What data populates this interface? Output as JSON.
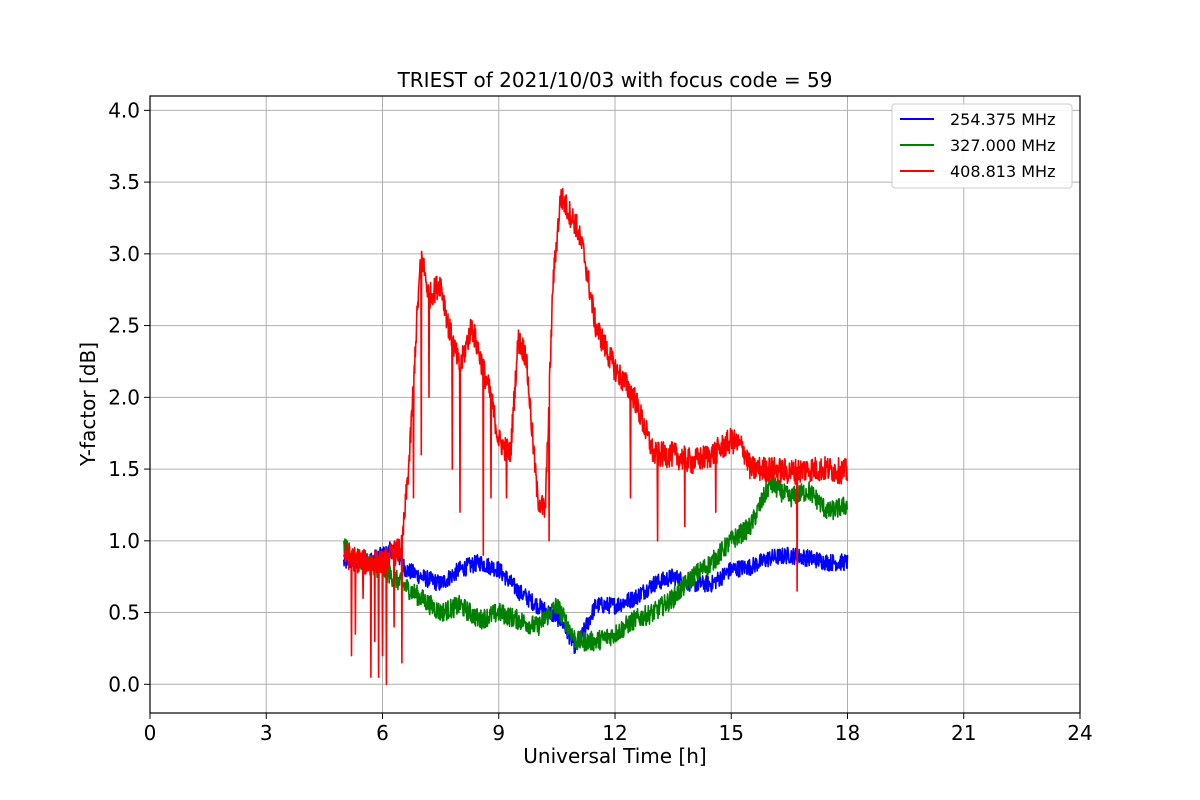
{
  "chart_data": {
    "type": "line",
    "title": "TRIEST of 2021/10/03 with focus code = 59",
    "xlabel": "Universal Time [h]",
    "ylabel": "Y-factor [dB]",
    "xlim": [
      0,
      24
    ],
    "ylim": [
      -0.2,
      4.1
    ],
    "xticks": [
      0,
      3,
      6,
      9,
      12,
      15,
      18,
      21,
      24
    ],
    "yticks": [
      0.0,
      0.5,
      1.0,
      1.5,
      2.0,
      2.5,
      3.0,
      3.5,
      4.0
    ],
    "xtick_labels": [
      "0",
      "3",
      "6",
      "9",
      "12",
      "15",
      "18",
      "21",
      "24"
    ],
    "ytick_labels": [
      "0.0",
      "0.5",
      "1.0",
      "1.5",
      "2.0",
      "2.5",
      "3.0",
      "3.5",
      "4.0"
    ],
    "grid": true,
    "legend_position": "top-right",
    "series": [
      {
        "name": "254.375 MHz",
        "color": "#0000ff",
        "noise": 0.06,
        "x": [
          5.0,
          5.5,
          6.0,
          6.3,
          6.6,
          7.0,
          7.5,
          8.0,
          8.5,
          9.0,
          9.5,
          10.0,
          10.3,
          10.6,
          11.0,
          11.5,
          12.0,
          12.5,
          13.0,
          13.5,
          14.0,
          14.5,
          15.0,
          15.5,
          16.0,
          16.5,
          17.0,
          17.5,
          18.0
        ],
        "y": [
          0.85,
          0.85,
          0.9,
          0.95,
          0.8,
          0.75,
          0.7,
          0.8,
          0.85,
          0.8,
          0.65,
          0.55,
          0.5,
          0.45,
          0.25,
          0.55,
          0.55,
          0.6,
          0.7,
          0.75,
          0.7,
          0.7,
          0.8,
          0.82,
          0.88,
          0.9,
          0.88,
          0.85,
          0.85
        ]
      },
      {
        "name": "327.000 MHz",
        "color": "#008000",
        "noise": 0.07,
        "x": [
          5.0,
          5.5,
          6.0,
          6.5,
          7.0,
          7.5,
          8.0,
          8.5,
          9.0,
          9.5,
          10.0,
          10.5,
          11.0,
          11.5,
          12.0,
          12.5,
          13.0,
          13.5,
          14.0,
          14.5,
          15.0,
          15.5,
          16.0,
          16.5,
          17.0,
          17.5,
          18.0
        ],
        "y": [
          0.95,
          0.85,
          0.8,
          0.7,
          0.6,
          0.5,
          0.55,
          0.45,
          0.5,
          0.45,
          0.4,
          0.55,
          0.3,
          0.3,
          0.35,
          0.45,
          0.5,
          0.6,
          0.75,
          0.85,
          1.0,
          1.1,
          1.4,
          1.3,
          1.35,
          1.2,
          1.25
        ]
      },
      {
        "name": "408.813 MHz",
        "color": "#ff0000",
        "noise": 0.09,
        "x": [
          5.0,
          5.5,
          6.0,
          6.5,
          6.7,
          6.9,
          7.0,
          7.2,
          7.5,
          7.7,
          8.0,
          8.3,
          8.5,
          8.8,
          9.0,
          9.3,
          9.5,
          9.7,
          10.0,
          10.2,
          10.4,
          10.6,
          10.8,
          11.0,
          11.2,
          11.5,
          12.0,
          12.5,
          13.0,
          13.5,
          14.0,
          14.5,
          15.0,
          15.3,
          15.5,
          16.0,
          16.5,
          17.0,
          17.5,
          18.0
        ],
        "y": [
          0.9,
          0.85,
          0.85,
          0.95,
          1.6,
          2.6,
          3.0,
          2.7,
          2.8,
          2.5,
          2.2,
          2.5,
          2.3,
          2.0,
          1.7,
          1.6,
          2.4,
          2.3,
          1.3,
          1.2,
          2.8,
          3.4,
          3.3,
          3.2,
          3.0,
          2.5,
          2.2,
          2.0,
          1.6,
          1.6,
          1.55,
          1.6,
          1.7,
          1.65,
          1.5,
          1.5,
          1.48,
          1.5,
          1.5,
          1.48
        ],
        "dips": [
          [
            5.2,
            0.2
          ],
          [
            5.3,
            0.35
          ],
          [
            5.5,
            0.6
          ],
          [
            5.7,
            0.05
          ],
          [
            5.8,
            0.3
          ],
          [
            5.9,
            0.05
          ],
          [
            6.0,
            0.2
          ],
          [
            6.1,
            0.0
          ],
          [
            6.3,
            0.4
          ],
          [
            6.5,
            0.15
          ],
          [
            6.8,
            1.3
          ],
          [
            7.0,
            1.6
          ],
          [
            7.2,
            2.0
          ],
          [
            7.8,
            1.5
          ],
          [
            8.0,
            1.2
          ],
          [
            8.6,
            0.9
          ],
          [
            8.8,
            1.3
          ],
          [
            9.2,
            1.3
          ],
          [
            10.3,
            1.0
          ],
          [
            12.4,
            1.3
          ],
          [
            13.1,
            1.0
          ],
          [
            13.8,
            1.1
          ],
          [
            14.6,
            1.2
          ],
          [
            16.7,
            0.65
          ]
        ]
      }
    ]
  }
}
